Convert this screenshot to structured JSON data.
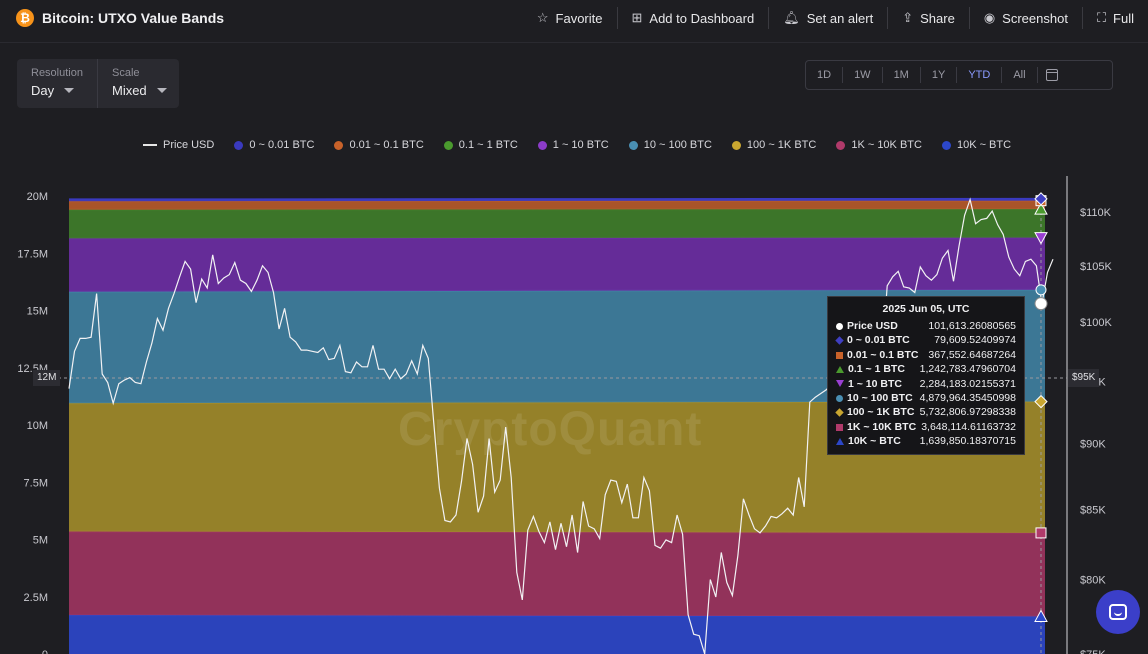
{
  "header": {
    "title": "Bitcoin: UTXO Value Bands",
    "logo_glyph": "₿",
    "actions": [
      {
        "label": "Favorite",
        "icon": "star-icon",
        "glyph": "☆"
      },
      {
        "label": "Add to Dashboard",
        "icon": "dashboard-add-icon",
        "glyph": "⊞"
      },
      {
        "label": "Set an alert",
        "icon": "bell-icon",
        "glyph": "🔔︎"
      },
      {
        "label": "Share",
        "icon": "share-icon",
        "glyph": "⇪"
      },
      {
        "label": "Screenshot",
        "icon": "camera-icon",
        "glyph": "◉"
      },
      {
        "label": "Full",
        "icon": "fullscreen-icon",
        "glyph": "⛶"
      }
    ]
  },
  "controls": {
    "resolution_label": "Resolution",
    "resolution_value": "Day",
    "scale_label": "Scale",
    "scale_value": "Mixed"
  },
  "ranges": {
    "items": [
      "1D",
      "1W",
      "1M",
      "1Y",
      "YTD",
      "All"
    ],
    "active": "YTD"
  },
  "colors": {
    "accent": "#8b9bff",
    "bitcoin": "#f7931a",
    "chat": "#3b3fc9"
  },
  "watermark": "CryptoQuant",
  "crosshair": {
    "left_label": "12M",
    "right_label": "$95K"
  },
  "tooltip": {
    "title": "2025 Jun 05, UTC",
    "rows": [
      {
        "name": "Price USD",
        "value": "101,613.26080565",
        "marker": "circle",
        "color": "#ffffff"
      },
      {
        "name": "0 ~ 0.01 BTC",
        "value": "79,609.52409974",
        "marker": "diamond",
        "color": "#3f3fc2"
      },
      {
        "name": "0.01 ~ 0.1 BTC",
        "value": "367,552.64687264",
        "marker": "square",
        "color": "#c8622a"
      },
      {
        "name": "0.1 ~ 1 BTC",
        "value": "1,242,783.47960704",
        "marker": "triangle",
        "color": "#4a9a2e"
      },
      {
        "name": "1 ~ 10 BTC",
        "value": "2,284,183.02155371",
        "marker": "triangle-down",
        "color": "#9a3fd2"
      },
      {
        "name": "10 ~ 100 BTC",
        "value": "4,879,964.35450998",
        "marker": "circle",
        "color": "#4a8fb3"
      },
      {
        "name": "100 ~ 1K BTC",
        "value": "5,732,806.97298338",
        "marker": "diamond",
        "color": "#c9a630"
      },
      {
        "name": "1K ~ 10K BTC",
        "value": "3,648,114.61163732",
        "marker": "square",
        "color": "#b03a6a"
      },
      {
        "name": "10K ~ BTC",
        "value": "1,639,850.18370715",
        "marker": "triangle",
        "color": "#2c47c9"
      }
    ]
  },
  "chart_data": {
    "type": "area",
    "title": "Bitcoin: UTXO Value Bands",
    "legend_position": "top",
    "y_left": {
      "ticks": [
        "20M",
        "17.5M",
        "15M",
        "12.5M",
        "10M",
        "7.5M",
        "5M",
        "2.5M",
        "0"
      ],
      "ylim": [
        0,
        20000000
      ]
    },
    "y_right": {
      "ticks": [
        "$110K",
        "$105K",
        "$100K",
        "$95K",
        "$90K",
        "$85K",
        "$80K",
        "$75K"
      ],
      "ylim": [
        75000,
        113500
      ],
      "scale": "log"
    },
    "legend": [
      {
        "name": "Price USD",
        "color": "#e6e6e6",
        "kind": "line"
      },
      {
        "name": "0 ~ 0.01 BTC",
        "color": "#3a3abf",
        "kind": "dot"
      },
      {
        "name": "0.01 ~ 0.1 BTC",
        "color": "#c8622a",
        "kind": "dot"
      },
      {
        "name": "0.1 ~ 1 BTC",
        "color": "#4a9a2e",
        "kind": "dot"
      },
      {
        "name": "1 ~ 10 BTC",
        "color": "#8c3cc9",
        "kind": "dot"
      },
      {
        "name": "10 ~ 100 BTC",
        "color": "#4a8fb3",
        "kind": "dot"
      },
      {
        "name": "100 ~ 1K BTC",
        "color": "#c9a630",
        "kind": "dot"
      },
      {
        "name": "1K ~ 10K BTC",
        "color": "#b03a6a",
        "kind": "dot"
      },
      {
        "name": "10K ~ BTC",
        "color": "#2c47c9",
        "kind": "dot"
      }
    ],
    "stack_order_bottom_to_top": [
      "10K ~ BTC",
      "1K ~ 10K BTC",
      "100 ~ 1K BTC",
      "10 ~ 100 BTC",
      "1 ~ 10 BTC",
      "0.1 ~ 1 BTC",
      "0.01 ~ 0.1 BTC",
      "0 ~ 0.01 BTC"
    ],
    "bands": [
      {
        "name": "10K ~ BTC",
        "color": "#2c47c9",
        "start": 1700000,
        "end": 1640000
      },
      {
        "name": "1K ~ 10K BTC",
        "color": "#9c3460",
        "start": 3650000,
        "end": 3648000
      },
      {
        "name": "100 ~ 1K BTC",
        "color": "#a08a2a",
        "start": 5600000,
        "end": 5733000
      },
      {
        "name": "10 ~ 100 BTC",
        "color": "#3f7fa0",
        "start": 4870000,
        "end": 4880000
      },
      {
        "name": "1 ~ 10 BTC",
        "color": "#6b2ea3",
        "start": 2330000,
        "end": 2284000
      },
      {
        "name": "0.1 ~ 1 BTC",
        "color": "#3f7d2a",
        "start": 1250000,
        "end": 1243000
      },
      {
        "name": "0.01 ~ 0.1 BTC",
        "color": "#b5592a",
        "start": 370000,
        "end": 368000
      },
      {
        "name": "0 ~ 0.01 BTC",
        "color": "#3a3abf",
        "start": 80000,
        "end": 79600
      }
    ],
    "price_series": [
      94400,
      97500,
      98600,
      98600,
      98700,
      102500,
      95600,
      94900,
      93200,
      94800,
      95100,
      95300,
      94900,
      94800,
      96600,
      98200,
      100300,
      99300,
      101200,
      102500,
      104000,
      105400,
      104700,
      101700,
      103800,
      103000,
      106000,
      103400,
      103900,
      104200,
      105300,
      103700,
      103400,
      102700,
      103700,
      105000,
      104400,
      102600,
      99400,
      101200,
      98700,
      98300,
      97600,
      97600,
      97500,
      97400,
      97800,
      96800,
      96900,
      98000,
      95800,
      95700,
      96600,
      96200,
      96200,
      98000,
      96000,
      96000,
      95200,
      96000,
      95200,
      95600,
      96700,
      95600,
      98000,
      96900,
      91500,
      86600,
      84200,
      84100,
      84600,
      87100,
      90400,
      88400,
      84800,
      86000,
      90400,
      86300,
      87200,
      91300,
      87400,
      80500,
      78600,
      83500,
      84500,
      83400,
      82600,
      84100,
      82100,
      84000,
      82300,
      84600,
      81900,
      85600,
      83800,
      83600,
      82900,
      86100,
      87200,
      87100,
      85500,
      86900,
      84400,
      84400,
      87400,
      86400,
      82400,
      82200,
      82800,
      82600,
      84600,
      83200,
      77600,
      76300,
      76200,
      75000,
      80000,
      78800,
      81900,
      79800,
      78900,
      81700,
      85800,
      84600,
      83600,
      83300,
      83800,
      84500,
      84400,
      84700,
      85100,
      84600,
      87400,
      85200,
      93300,
      93700,
      94000,
      94300,
      94800,
      94300,
      94800,
      95100,
      94300,
      95800,
      95100,
      97000,
      96500,
      96500,
      103200,
      104000,
      104500,
      103100,
      103000,
      102600,
      104900,
      104100,
      103700,
      104200,
      105700,
      106400,
      103600,
      106800,
      109700,
      111200,
      108900,
      109300,
      109400,
      110100,
      108800,
      107900,
      105800,
      104700,
      104100,
      105400,
      105600,
      105000,
      101600,
      104400,
      105600
    ]
  }
}
